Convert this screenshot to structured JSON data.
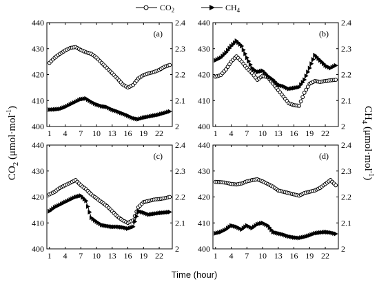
{
  "legend": {
    "co2": {
      "main": "CO",
      "sub": "2"
    },
    "ch4": {
      "main": "CH",
      "sub": "4"
    }
  },
  "axes_titles": {
    "left": {
      "main": "CO",
      "sub": "2",
      "unit": " (μmol·mol",
      "sup": "-1",
      "close": ")"
    },
    "right": {
      "main": "CH",
      "sub": "4",
      "unit": " (μmol·mol",
      "sup": "-1",
      "close": ")"
    },
    "x": "Time (hour)"
  },
  "colors": {
    "line": "#000000",
    "marker_fill": "#ffffff"
  },
  "chart_data": [
    {
      "type": "line",
      "panel_label": "(a)",
      "x": [
        1,
        2,
        3,
        4,
        5,
        6,
        7,
        8,
        9,
        10,
        11,
        12,
        13,
        14,
        15,
        16,
        17,
        18,
        19,
        20,
        21,
        22,
        23,
        24
      ],
      "xticks": [
        1,
        4,
        7,
        10,
        13,
        16,
        19,
        22
      ],
      "xlim": [
        0.5,
        24.5
      ],
      "ylim_left": [
        400,
        440
      ],
      "yticks_left": [
        400,
        410,
        420,
        430,
        440
      ],
      "ylim_right": [
        2.0,
        2.4
      ],
      "yticks_right": [
        "2",
        "2.1",
        "2.2",
        "2.3",
        "2.4"
      ],
      "series": [
        {
          "name": "CO2",
          "axis": "left",
          "marker": "circle",
          "values": [
            424.5,
            426.5,
            428,
            429.3,
            430.3,
            430.6,
            429.5,
            428.6,
            428,
            426.5,
            424.5,
            422.5,
            420.5,
            418.5,
            416.2,
            415,
            416,
            418.5,
            419.8,
            420.5,
            421,
            421.8,
            423,
            423.7
          ]
        },
        {
          "name": "CH4",
          "axis": "right",
          "marker": "triangle",
          "values": [
            2.065,
            2.066,
            2.068,
            2.075,
            2.085,
            2.095,
            2.105,
            2.108,
            2.095,
            2.085,
            2.078,
            2.075,
            2.065,
            2.058,
            2.05,
            2.042,
            2.032,
            2.028,
            2.034,
            2.038,
            2.042,
            2.046,
            2.052,
            2.058
          ]
        }
      ]
    },
    {
      "type": "line",
      "panel_label": "(b)",
      "x": [
        1,
        2,
        3,
        4,
        5,
        6,
        7,
        8,
        9,
        10,
        11,
        12,
        13,
        14,
        15,
        16,
        17,
        18,
        19,
        20,
        21,
        22,
        23,
        24
      ],
      "xticks": [
        1,
        4,
        7,
        10,
        13,
        16,
        19,
        22
      ],
      "xlim": [
        0.5,
        24.5
      ],
      "ylim_left": [
        400,
        440
      ],
      "yticks_left": [
        400,
        410,
        420,
        430,
        440
      ],
      "ylim_right": [
        2.0,
        2.4
      ],
      "yticks_right": [
        "2",
        "2.1",
        "2.2",
        "2.3",
        "2.4"
      ],
      "series": [
        {
          "name": "CO2",
          "axis": "left",
          "marker": "circle",
          "values": [
            419.2,
            419.8,
            422,
            425,
            427,
            425,
            422.5,
            420.5,
            418,
            419.5,
            419,
            416.5,
            414,
            411.5,
            409,
            408.2,
            408,
            413,
            416.5,
            417.5,
            417.2,
            417.5,
            417.8,
            418
          ]
        },
        {
          "name": "CH4",
          "axis": "right",
          "marker": "triangle",
          "values": [
            2.255,
            2.265,
            2.285,
            2.31,
            2.33,
            2.31,
            2.265,
            2.225,
            2.21,
            2.215,
            2.195,
            2.18,
            2.16,
            2.155,
            2.145,
            2.148,
            2.152,
            2.18,
            2.225,
            2.275,
            2.255,
            2.235,
            2.225,
            2.235
          ]
        }
      ]
    },
    {
      "type": "line",
      "panel_label": "(c)",
      "x": [
        1,
        2,
        3,
        4,
        5,
        6,
        7,
        8,
        9,
        10,
        11,
        12,
        13,
        14,
        15,
        16,
        17,
        18,
        19,
        20,
        21,
        22,
        23,
        24
      ],
      "xticks": [
        1,
        4,
        7,
        10,
        13,
        16,
        19,
        22
      ],
      "xlim": [
        0.5,
        24.5
      ],
      "ylim_left": [
        400,
        440
      ],
      "yticks_left": [
        400,
        410,
        420,
        430,
        440
      ],
      "ylim_right": [
        2.0,
        2.4
      ],
      "yticks_right": [
        "2",
        "2.1",
        "2.2",
        "2.3",
        "2.4"
      ],
      "series": [
        {
          "name": "CO2",
          "axis": "left",
          "marker": "circle",
          "values": [
            421,
            422,
            423.5,
            424.5,
            425.5,
            426.5,
            424.5,
            423,
            421,
            419.5,
            418,
            416.5,
            414.5,
            412.5,
            411,
            410,
            411,
            416,
            418,
            418.5,
            419,
            419.2,
            419.5,
            420
          ]
        },
        {
          "name": "CH4",
          "axis": "right",
          "marker": "triangle",
          "values": [
            2.145,
            2.16,
            2.17,
            2.18,
            2.19,
            2.2,
            2.205,
            2.185,
            2.12,
            2.105,
            2.092,
            2.088,
            2.085,
            2.085,
            2.083,
            2.078,
            2.085,
            2.145,
            2.14,
            2.132,
            2.135,
            2.138,
            2.14,
            2.142
          ]
        }
      ]
    },
    {
      "type": "line",
      "panel_label": "(d)",
      "x": [
        1,
        2,
        3,
        4,
        5,
        6,
        7,
        8,
        9,
        10,
        11,
        12,
        13,
        14,
        15,
        16,
        17,
        18,
        19,
        20,
        21,
        22,
        23,
        24
      ],
      "xticks": [
        1,
        4,
        7,
        10,
        13,
        16,
        19,
        22
      ],
      "xlim": [
        0.5,
        24.5
      ],
      "ylim_left": [
        400,
        440
      ],
      "yticks_left": [
        400,
        410,
        420,
        430,
        440
      ],
      "ylim_right": [
        2.0,
        2.4
      ],
      "yticks_right": [
        "2",
        "2.1",
        "2.2",
        "2.3",
        "2.4"
      ],
      "series": [
        {
          "name": "CO2",
          "axis": "left",
          "marker": "circle",
          "values": [
            425.8,
            425.7,
            425.5,
            425,
            424.8,
            425.2,
            426,
            426.5,
            426.8,
            426,
            425,
            424,
            422.5,
            422,
            421.5,
            421,
            420.5,
            421.5,
            422,
            422.5,
            423.5,
            425,
            426.5,
            424.5
          ]
        },
        {
          "name": "CH4",
          "axis": "right",
          "marker": "triangle",
          "values": [
            2.06,
            2.065,
            2.075,
            2.09,
            2.085,
            2.075,
            2.09,
            2.08,
            2.095,
            2.1,
            2.09,
            2.065,
            2.06,
            2.055,
            2.048,
            2.044,
            2.042,
            2.046,
            2.052,
            2.06,
            2.063,
            2.065,
            2.063,
            2.058
          ]
        }
      ]
    }
  ]
}
